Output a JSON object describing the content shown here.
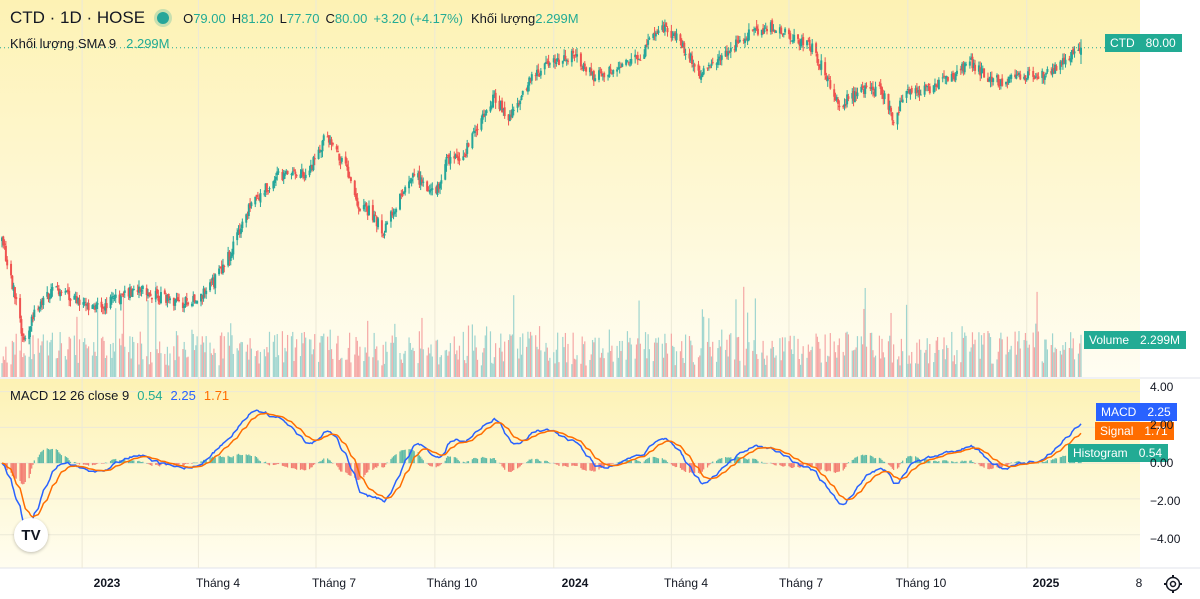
{
  "header": {
    "symbol": "CTD · 1D · HOSE",
    "o_label": "O",
    "o": "79.00",
    "h_label": "H",
    "h": "81.20",
    "l_label": "L",
    "l": "77.70",
    "c_label": "C",
    "c": "80.00",
    "change": "+3.20 (+4.17%)",
    "vol_label": "Khối lượng",
    "vol": "2.299M"
  },
  "volume_sma": {
    "label": "Khối lượng SMA 9",
    "value": "2.299M"
  },
  "macd_legend": {
    "label": "MACD 12 26 close 9",
    "hist": "0.54",
    "macd": "2.25",
    "signal": "1.71"
  },
  "price_tag": {
    "name": "CTD",
    "value": "80.00"
  },
  "volume_tag": {
    "name": "Volume",
    "value": "2.299M"
  },
  "macd_tags": [
    {
      "name": "MACD",
      "value": "2.25"
    },
    {
      "name": "Signal",
      "value": "1.71"
    },
    {
      "name": "Histogram",
      "value": "0.54"
    }
  ],
  "macd_axis": [
    "4.00",
    "2.00",
    "0.00",
    "−2.00",
    "−4.00"
  ],
  "x_axis": [
    {
      "label": "2023",
      "year": true
    },
    {
      "label": "Tháng 4",
      "year": false
    },
    {
      "label": "Tháng 7",
      "year": false
    },
    {
      "label": "Tháng 10",
      "year": false
    },
    {
      "label": "2024",
      "year": true
    },
    {
      "label": "Tháng 4",
      "year": false
    },
    {
      "label": "Tháng 7",
      "year": false
    },
    {
      "label": "Tháng 10",
      "year": false
    },
    {
      "label": "2025",
      "year": true
    },
    {
      "label": "8",
      "year": false
    }
  ],
  "logo_text": "TV",
  "colors": {
    "up": "#26a69a",
    "down": "#ef5350",
    "macd": "#2962ff",
    "signal": "#ff6d00",
    "vol_up": "#9fd5cf",
    "vol_down": "#f5a7a5",
    "hist_up": "#26a69a",
    "hist_down": "#ef5350",
    "tag_price": "#22ab94",
    "tag_volume": "#22ab94",
    "tag_hist": "#22ab94"
  },
  "chart_data": {
    "type": "candlestick",
    "symbol": "CTD",
    "interval": "1D",
    "exchange": "HOSE",
    "anchors": [
      [
        "2022-10-31",
        53
      ],
      [
        "2022-11-10",
        45
      ],
      [
        "2022-11-17",
        38
      ],
      [
        "2022-11-25",
        43
      ],
      [
        "2022-12-12",
        46
      ],
      [
        "2023-01-10",
        43
      ],
      [
        "2023-02-14",
        46
      ],
      [
        "2023-02-24",
        45
      ],
      [
        "2023-03-20",
        44
      ],
      [
        "2023-04-03",
        45
      ],
      [
        "2023-04-13",
        47
      ],
      [
        "2023-04-26",
        51
      ],
      [
        "2023-05-12",
        58
      ],
      [
        "2023-06-02",
        62
      ],
      [
        "2023-06-23",
        62
      ],
      [
        "2023-07-03",
        65
      ],
      [
        "2023-07-08",
        68
      ],
      [
        "2023-07-24",
        63
      ],
      [
        "2023-08-01",
        58
      ],
      [
        "2023-08-11",
        57
      ],
      [
        "2023-08-22",
        54
      ],
      [
        "2023-09-01",
        58
      ],
      [
        "2023-09-16",
        62
      ],
      [
        "2023-10-01",
        59
      ],
      [
        "2023-10-10",
        64
      ],
      [
        "2023-10-24",
        65
      ],
      [
        "2023-11-01",
        68
      ],
      [
        "2023-11-16",
        73
      ],
      [
        "2023-11-27",
        70
      ],
      [
        "2023-12-12",
        75
      ],
      [
        "2023-12-31",
        78
      ],
      [
        "2024-01-15",
        79
      ],
      [
        "2024-02-01",
        76
      ],
      [
        "2024-02-28",
        78
      ],
      [
        "2024-03-08",
        79
      ],
      [
        "2024-03-19",
        82
      ],
      [
        "2024-03-28",
        83
      ],
      [
        "2024-04-11",
        80
      ],
      [
        "2024-04-24",
        76
      ],
      [
        "2024-05-11",
        79
      ],
      [
        "2024-06-01",
        82
      ],
      [
        "2024-06-20",
        83
      ],
      [
        "2024-07-06",
        81
      ],
      [
        "2024-07-19",
        80
      ],
      [
        "2024-07-30",
        76
      ],
      [
        "2024-08-09",
        72
      ],
      [
        "2024-08-26",
        74
      ],
      [
        "2024-09-10",
        74
      ],
      [
        "2024-09-20",
        70
      ],
      [
        "2024-10-01",
        74
      ],
      [
        "2024-10-15",
        74
      ],
      [
        "2024-11-06",
        76
      ],
      [
        "2024-11-19",
        78
      ],
      [
        "2024-12-01",
        76
      ],
      [
        "2024-12-14",
        75
      ],
      [
        "2024-12-30",
        76
      ],
      [
        "2025-01-12",
        76
      ],
      [
        "2025-01-22",
        77
      ],
      [
        "2025-02-04",
        79
      ],
      [
        "2025-02-12",
        80
      ]
    ],
    "last_bar": {
      "open": 79.0,
      "high": 81.2,
      "low": 77.7,
      "close": 80.0,
      "change": 3.2,
      "change_pct": 4.17,
      "volume": "2.299M"
    },
    "indicators": {
      "volume_sma": {
        "length": 9,
        "value": "2.299M"
      },
      "macd": {
        "fast": 12,
        "slow": 26,
        "source": "close",
        "signal": 9,
        "macd": 2.25,
        "signal_value": 1.71,
        "histogram": 0.54
      }
    },
    "macd_axis_range": [
      -4.8,
      4.2
    ],
    "x_labels": [
      "2023",
      "Tháng 4",
      "Tháng 7",
      "Tháng 10",
      "2024",
      "Tháng 4",
      "Tháng 7",
      "Tháng 10",
      "2025",
      "8"
    ]
  }
}
